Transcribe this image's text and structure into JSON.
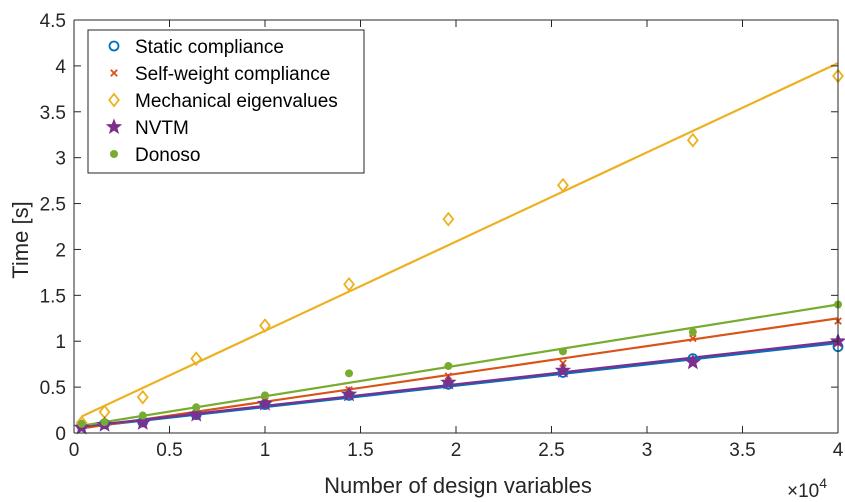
{
  "chart_data": {
    "type": "scatter",
    "title": "",
    "xlabel": "Number of design variables",
    "ylabel": "Time [s]",
    "x_exponent_label": "×10",
    "x_exponent": "4",
    "xlim": [
      0,
      4
    ],
    "ylim": [
      0,
      4.5
    ],
    "xticks": [
      0,
      0.5,
      1,
      1.5,
      2,
      2.5,
      3,
      3.5,
      4
    ],
    "yticks": [
      0,
      0.5,
      1,
      1.5,
      2,
      2.5,
      3,
      3.5,
      4,
      4.5
    ],
    "xtick_labels": [
      "0",
      "0.5",
      "1",
      "1.5",
      "2",
      "2.5",
      "3",
      "3.5",
      "4"
    ],
    "ytick_labels": [
      "0",
      "0.5",
      "1",
      "1.5",
      "2",
      "2.5",
      "3",
      "3.5",
      "4",
      "4.5"
    ],
    "x": [
      0.04,
      0.16,
      0.36,
      0.64,
      1.0,
      1.44,
      1.96,
      2.56,
      3.24,
      4.0
    ],
    "legend_position": "top-left",
    "series": [
      {
        "name": "Static compliance",
        "marker": "circle",
        "color": "#0072BD",
        "values": [
          0.08,
          0.1,
          0.12,
          0.2,
          0.31,
          0.41,
          0.53,
          0.66,
          0.81,
          0.94
        ],
        "fit": [
          0.06,
          0.98
        ]
      },
      {
        "name": "Self-weight compliance",
        "marker": "x",
        "color": "#D95319",
        "values": [
          0.08,
          0.1,
          0.14,
          0.22,
          0.35,
          0.47,
          0.62,
          0.76,
          1.03,
          1.22
        ],
        "fit": [
          0.05,
          1.25
        ]
      },
      {
        "name": "Mechanical eigenvalues",
        "marker": "diamond",
        "color": "#EDB120",
        "values": [
          0.11,
          0.23,
          0.39,
          0.81,
          1.17,
          1.62,
          2.33,
          2.7,
          3.19,
          3.89
        ],
        "fit": [
          0.18,
          4.03
        ]
      },
      {
        "name": "NVTM",
        "marker": "star",
        "color": "#7E2F8E",
        "values": [
          0.06,
          0.09,
          0.11,
          0.2,
          0.32,
          0.42,
          0.55,
          0.68,
          0.77,
          1.0
        ],
        "fit": [
          0.07,
          1.0
        ]
      },
      {
        "name": "Donoso",
        "marker": "dot",
        "color": "#77AC30",
        "values": [
          0.1,
          0.12,
          0.19,
          0.28,
          0.41,
          0.65,
          0.73,
          0.89,
          1.1,
          1.4
        ],
        "fit": [
          0.08,
          1.4
        ]
      }
    ]
  }
}
